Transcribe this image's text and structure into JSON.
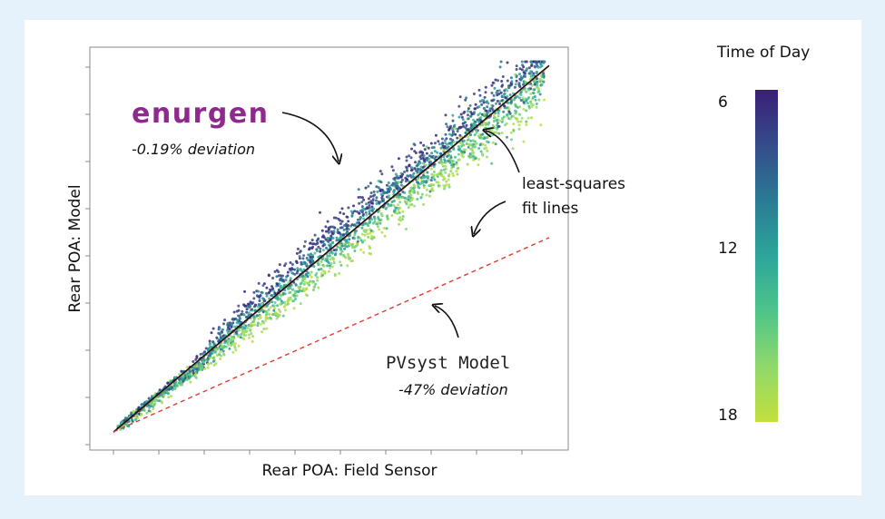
{
  "chart_data": {
    "type": "scatter",
    "xlabel": "Rear POA: Field Sensor",
    "ylabel": "Rear POA: Model",
    "xlim": [
      0,
      1
    ],
    "ylim": [
      0,
      1
    ],
    "grid": false,
    "tick_labels": "none",
    "color_encoding": "Time of Day",
    "colorbar": {
      "title": "Time of Day",
      "ticks": [
        "6",
        "12",
        "18"
      ],
      "range": [
        6,
        18
      ],
      "colors": [
        "#3b1f78",
        "#35478a",
        "#2a7a93",
        "#2ca59a",
        "#4cc38a",
        "#8fd86c",
        "#c3df3c"
      ]
    },
    "series": [
      {
        "name": "least-squares fit (enurgen)",
        "kind": "line",
        "style": "solid",
        "color": "#111111",
        "x": [
          0,
          1
        ],
        "y": [
          0,
          1
        ]
      },
      {
        "name": "least-squares fit (PVsyst)",
        "kind": "line",
        "style": "dashed",
        "color": "#e03a2f",
        "x": [
          0,
          1
        ],
        "y": [
          0,
          0.53
        ]
      }
    ],
    "annotations": {
      "brand": "enurgen",
      "brand_deviation": "-0.19% deviation",
      "fit_note_line1": "least-squares",
      "fit_note_line2": "fit lines",
      "pvsyst_label": "PVsyst Model",
      "pvsyst_deviation": "-47% deviation"
    }
  }
}
